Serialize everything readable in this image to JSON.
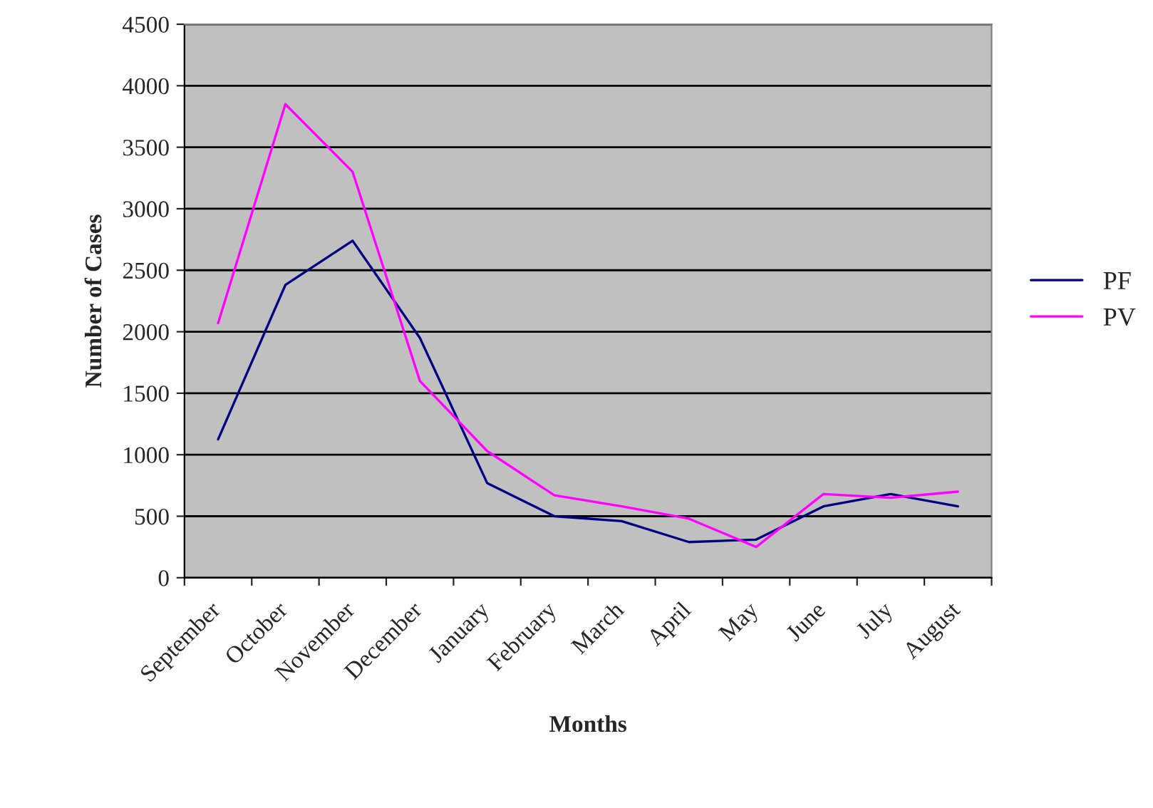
{
  "chart_data": {
    "type": "line",
    "xlabel": "Months",
    "ylabel": "Number of Cases",
    "categories": [
      "September",
      "October",
      "November",
      "December",
      "January",
      "February",
      "March",
      "April",
      "May",
      "June",
      "July",
      "August"
    ],
    "series": [
      {
        "name": "PF",
        "color": "#000080",
        "values": [
          1125,
          2380,
          2740,
          1950,
          770,
          500,
          460,
          290,
          310,
          580,
          680,
          580
        ]
      },
      {
        "name": "PV",
        "color": "#ff00ff",
        "values": [
          2070,
          3850,
          3300,
          1600,
          1030,
          670,
          580,
          480,
          250,
          680,
          650,
          700
        ]
      }
    ],
    "ylim": [
      0,
      4500
    ],
    "yticks": [
      0,
      500,
      1000,
      1500,
      2000,
      2500,
      3000,
      3500,
      4000,
      4500
    ],
    "grid": "y",
    "legend": "right",
    "marker": "none",
    "line_style": "solid"
  }
}
